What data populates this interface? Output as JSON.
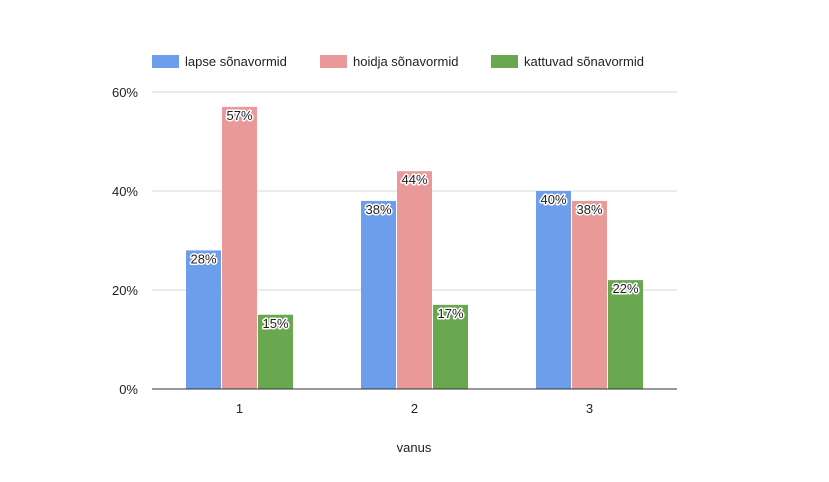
{
  "chart_data": {
    "type": "bar",
    "categories": [
      "1",
      "2",
      "3"
    ],
    "series": [
      {
        "name": "lapse sõnavormid",
        "color": "#6d9eeb",
        "values": [
          28,
          38,
          40
        ],
        "labels": [
          "28%",
          "38%",
          "40%"
        ]
      },
      {
        "name": "hoidja sõnavormid",
        "color": "#ea9999",
        "values": [
          57,
          44,
          38
        ],
        "labels": [
          "57%",
          "44%",
          "38%"
        ]
      },
      {
        "name": "kattuvad sõnavormid",
        "color": "#6aa84f",
        "values": [
          15,
          17,
          22
        ],
        "labels": [
          "15%",
          "17%",
          "22%"
        ]
      }
    ],
    "xlabel": "vanus",
    "ylabel": "",
    "ylim": [
      0,
      60
    ],
    "yticks": [
      0,
      20,
      40,
      60
    ],
    "ytick_labels": [
      "0%",
      "20%",
      "40%",
      "60%"
    ],
    "grid": true,
    "legend_position": "top"
  }
}
